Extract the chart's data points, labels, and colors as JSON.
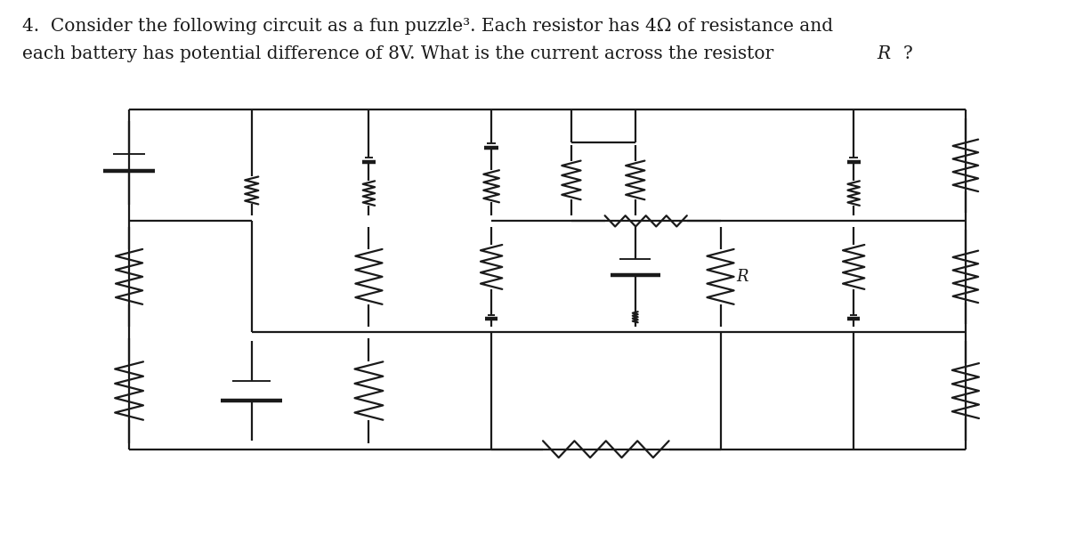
{
  "bg_color": "#ffffff",
  "line_color": "#1a1a1a",
  "text_color": "#1a1a1a",
  "title_fontsize": 14.5,
  "R_label_fontsize": 13,
  "figsize": [
    12.0,
    6.28
  ],
  "dpi": 100,
  "lw": 1.6,
  "title1": "4.  Consider the following circuit as a fun puzzle³. Each resistor has 4Ω of resistance and",
  "title2": "each battery has potential difference of 8V. What is the current across the resistor ",
  "title2_R": "R",
  "title2_end": "?",
  "ytop": 8.05,
  "ymid1": 6.05,
  "ymid2": 4.05,
  "ybot": 1.95,
  "cols": [
    1.2,
    2.35,
    3.45,
    4.6,
    5.35,
    5.95,
    6.75,
    8.0,
    9.05
  ]
}
